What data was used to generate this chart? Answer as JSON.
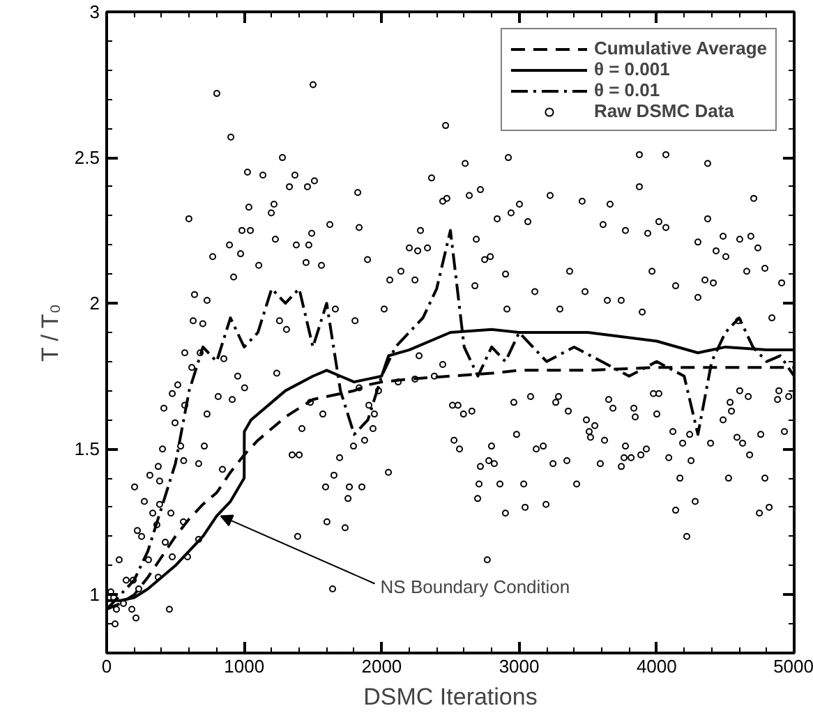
{
  "chart_data": {
    "type": "line",
    "xlabel": "DSMC Iterations",
    "ylabel": "T / T₀",
    "xlim": [
      0,
      5000
    ],
    "ylim": [
      0.8,
      3
    ],
    "xticks": [
      0,
      1000,
      2000,
      3000,
      4000,
      5000
    ],
    "yticks": [
      1,
      1.5,
      2,
      2.5,
      3
    ],
    "grid": false,
    "legend": "top right",
    "marker": "none",
    "series": [
      {
        "name": "Cumulative Average",
        "color": "#000000",
        "line_style": "dashed",
        "x": [
          0,
          100,
          200,
          300,
          400,
          500,
          600,
          700,
          800,
          900,
          1000,
          1100,
          1200,
          1300,
          1400,
          1500,
          1600,
          1700,
          1800,
          1900,
          2000,
          2200,
          2500,
          2800,
          3000,
          3500,
          4000,
          4500,
          5000
        ],
        "values": [
          0.95,
          0.97,
          1.0,
          1.06,
          1.13,
          1.2,
          1.26,
          1.31,
          1.35,
          1.42,
          1.48,
          1.53,
          1.57,
          1.61,
          1.64,
          1.67,
          1.68,
          1.69,
          1.7,
          1.72,
          1.73,
          1.74,
          1.75,
          1.76,
          1.77,
          1.77,
          1.78,
          1.78,
          1.78
        ]
      },
      {
        "name": "θ = 0.001",
        "color": "#000000",
        "line_style": "solid",
        "x": [
          0,
          100,
          200,
          300,
          400,
          500,
          600,
          700,
          800,
          900,
          1000,
          1001,
          1050,
          1200,
          1300,
          1500,
          1600,
          1700,
          1800,
          1900,
          2000,
          2050,
          2200,
          2500,
          2800,
          3000,
          3500,
          4000,
          4300,
          4500,
          4800,
          5000
        ],
        "values": [
          0.98,
          0.98,
          0.99,
          1.02,
          1.06,
          1.1,
          1.15,
          1.2,
          1.27,
          1.32,
          1.4,
          1.56,
          1.6,
          1.66,
          1.7,
          1.75,
          1.77,
          1.75,
          1.73,
          1.74,
          1.75,
          1.82,
          1.84,
          1.9,
          1.91,
          1.9,
          1.9,
          1.87,
          1.83,
          1.85,
          1.84,
          1.84
        ]
      },
      {
        "name": "θ = 0.01",
        "color": "#000000",
        "line_style": "dashdot",
        "x": [
          0,
          100,
          200,
          300,
          400,
          500,
          600,
          700,
          800,
          900,
          1000,
          1100,
          1200,
          1300,
          1400,
          1500,
          1600,
          1700,
          1800,
          1900,
          2000,
          2100,
          2200,
          2300,
          2400,
          2500,
          2600,
          2700,
          2800,
          2900,
          3000,
          3200,
          3400,
          3600,
          3800,
          4000,
          4200,
          4300,
          4400,
          4500,
          4600,
          4700,
          4800,
          4900,
          5000
        ],
        "values": [
          0.95,
          1.0,
          1.05,
          1.15,
          1.3,
          1.45,
          1.7,
          1.85,
          1.8,
          1.95,
          1.85,
          1.9,
          2.05,
          2.0,
          2.05,
          1.85,
          2.0,
          1.7,
          1.55,
          1.6,
          1.75,
          1.85,
          1.9,
          1.95,
          2.05,
          2.25,
          1.85,
          1.75,
          1.85,
          1.8,
          1.9,
          1.8,
          1.85,
          1.8,
          1.75,
          1.8,
          1.75,
          1.55,
          1.8,
          1.9,
          1.95,
          1.85,
          1.8,
          1.82,
          1.75
        ]
      },
      {
        "name": "Raw DSMC Data",
        "type": "scatter",
        "marker": "circle",
        "color": "#000000",
        "x": [
          801,
          1501,
          903,
          2465,
          1278,
          1024,
          1136,
          1369,
          1511,
          1329,
          1460,
          2363,
          598,
          1034,
          1217,
          1197,
          2444,
          2474,
          1826,
          984,
          1045,
          1491,
          1623,
          1836,
          2282,
          1227,
          1379,
          1470,
          893,
          771,
          974,
          1106,
          1450,
          1562,
          1897,
          2201,
          2262,
          2333,
          923,
          639,
          730,
          2059,
          2140,
          2242,
          1663,
          2018,
          629,
          699,
          1806,
          1257,
          1308,
          2607,
          2921,
          3874,
          4067,
          4371,
          2637,
          2718,
          3225,
          3458,
          3661,
          3874,
          3002,
          2840,
          2941,
          3063,
          4371,
          4706,
          3610,
          3773,
          3935,
          4016,
          4067,
          2688,
          4300,
          4483,
          4604,
          4685,
          4736,
          4432,
          4503,
          4787,
          4655,
          2749,
          2790,
          3367,
          3966,
          2901,
          2678,
          4138,
          4351,
          4412,
          4909,
          3114,
          3479,
          3641,
          3742,
          2911,
          3296,
          3895,
          4300,
          4594,
          4838,
          568,
          680,
          619,
          852,
          953,
          1003,
          517,
          477,
          568,
          730,
          416,
          811,
          913,
          497,
          538,
          710,
          406,
          669,
          560,
          375,
          314,
          385,
          842,
          203,
          274,
          385,
          335,
          467,
          365,
          558,
          223,
          254,
          426,
          669,
          91,
          304,
          477,
          588,
          375,
          142,
          193,
          233,
          30,
          51,
          122,
          183,
          213,
          71,
          61,
          456,
          1389,
          1643,
          1602,
          1734,
          1592,
          1765,
          1856,
          1755,
          1653,
          1349,
          1400,
          1420,
          1694,
          1795,
          1876,
          1937,
          1947,
          2049,
          1977,
          1836,
          1907,
          1572,
          1481,
          2515,
          2555,
          2383,
          2444,
          2242,
          2272,
          2120,
          1237,
          2595,
          2656,
          2526,
          2566,
          2718,
          2779,
          2819,
          2799,
          2708,
          2698,
          2860,
          2900,
          2768,
          2961,
          2981,
          3033,
          3043,
          3083,
          3124,
          3175,
          3195,
          3246,
          3286,
          3357,
          3266,
          3347,
          3418,
          3489,
          3509,
          3519,
          3550,
          3621,
          3590,
          3651,
          3682,
          3743,
          3763,
          3773,
          3814,
          3834,
          3844,
          3885,
          3925,
          3976,
          4016,
          4001,
          4088,
          4138,
          4169,
          4118,
          4189,
          4240,
          4250,
          4219,
          4280,
          4392,
          4523,
          4483,
          4534,
          4544,
          4604,
          4666,
          4584,
          4625,
          4676,
          4757,
          4747,
          4818,
          4787,
          4889,
          4879,
          4929,
          4960
        ],
        "values": [
          2.72,
          2.75,
          2.57,
          2.61,
          2.5,
          2.45,
          2.44,
          2.44,
          2.42,
          2.4,
          2.4,
          2.43,
          2.29,
          2.33,
          2.34,
          2.31,
          2.35,
          2.36,
          2.38,
          2.25,
          2.25,
          2.24,
          2.27,
          2.26,
          2.25,
          2.22,
          2.2,
          2.2,
          2.2,
          2.16,
          2.17,
          2.13,
          2.14,
          2.13,
          2.15,
          2.19,
          2.18,
          2.19,
          2.09,
          2.03,
          2.01,
          2.08,
          2.11,
          2.08,
          1.98,
          1.98,
          1.94,
          1.93,
          1.94,
          1.94,
          1.91,
          2.48,
          2.5,
          2.51,
          2.51,
          2.48,
          2.37,
          2.39,
          2.37,
          2.35,
          2.34,
          2.4,
          2.34,
          2.29,
          2.31,
          2.28,
          2.29,
          2.36,
          2.27,
          2.25,
          2.24,
          2.28,
          2.26,
          2.22,
          2.21,
          2.23,
          2.22,
          2.23,
          2.19,
          2.18,
          2.16,
          2.12,
          2.11,
          2.15,
          2.16,
          2.11,
          2.11,
          2.1,
          2.06,
          2.06,
          2.08,
          2.07,
          2.07,
          2.04,
          2.04,
          2.01,
          2.01,
          1.98,
          1.98,
          1.97,
          2.02,
          1.94,
          1.95,
          1.83,
          1.83,
          1.78,
          1.81,
          1.75,
          1.71,
          1.72,
          1.69,
          1.65,
          1.62,
          1.64,
          1.68,
          1.67,
          1.59,
          1.51,
          1.51,
          1.5,
          1.45,
          1.46,
          1.44,
          1.41,
          1.39,
          1.43,
          1.37,
          1.32,
          1.31,
          1.28,
          1.28,
          1.24,
          1.25,
          1.22,
          1.2,
          1.18,
          1.19,
          1.12,
          1.12,
          1.13,
          1.13,
          1.06,
          1.05,
          1.05,
          1.02,
          1.01,
          0.99,
          0.97,
          0.95,
          0.92,
          0.95,
          0.9,
          0.95,
          1.2,
          1.02,
          1.25,
          1.23,
          1.37,
          1.37,
          1.37,
          1.33,
          1.41,
          1.48,
          1.48,
          1.57,
          1.47,
          1.51,
          1.53,
          1.57,
          1.62,
          1.42,
          1.7,
          1.71,
          1.65,
          1.62,
          1.66,
          1.65,
          1.65,
          1.75,
          1.79,
          1.74,
          1.82,
          1.73,
          1.76,
          1.62,
          1.63,
          1.53,
          1.5,
          1.44,
          1.46,
          1.45,
          1.51,
          1.38,
          1.33,
          1.38,
          1.28,
          1.12,
          1.66,
          1.55,
          1.38,
          1.3,
          1.68,
          1.5,
          1.51,
          1.31,
          1.45,
          1.68,
          1.63,
          1.66,
          1.46,
          1.38,
          1.6,
          1.56,
          1.54,
          1.58,
          1.53,
          1.45,
          1.67,
          1.64,
          1.44,
          1.47,
          1.51,
          1.47,
          1.64,
          1.61,
          1.48,
          1.5,
          1.69,
          1.69,
          1.62,
          1.47,
          1.29,
          1.4,
          1.56,
          1.52,
          1.55,
          1.46,
          1.2,
          1.32,
          1.52,
          1.4,
          1.6,
          1.66,
          1.63,
          1.7,
          1.68,
          1.54,
          1.52,
          1.48,
          1.55,
          1.28,
          1.3,
          1.4,
          1.7,
          1.67,
          1.56,
          1.68
        ]
      }
    ],
    "annotations": [
      {
        "text": "NS Boundary Condition",
        "x": 830,
        "y": 1.27
      }
    ]
  }
}
